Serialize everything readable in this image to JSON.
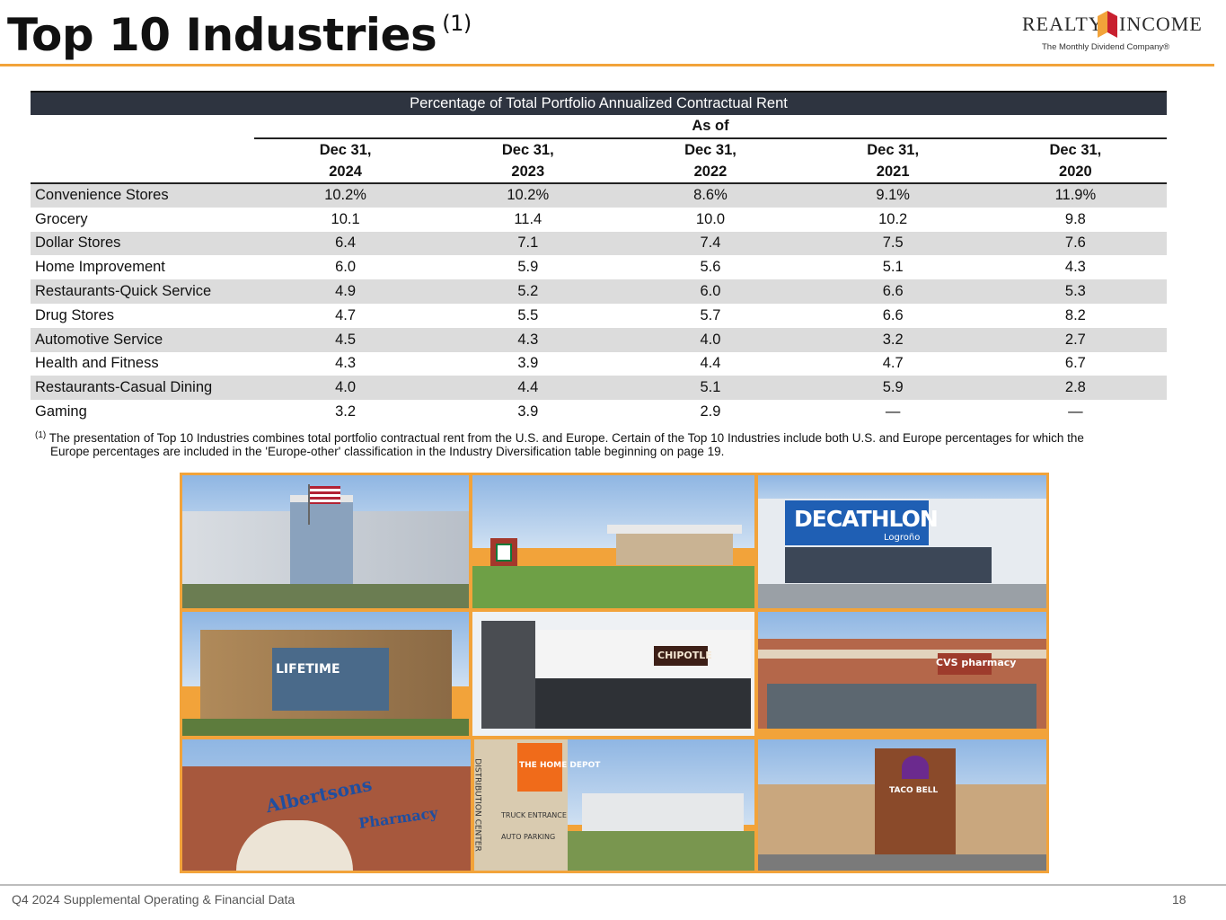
{
  "header": {
    "title": "Top 10 Industries",
    "title_superscript": "(1)",
    "logo_word_left": "REALTY",
    "logo_word_right": "INCOME",
    "logo_tagline": "The Monthly Dividend Company®"
  },
  "table": {
    "banner": "Percentage of Total Portfolio Annualized Contractual Rent",
    "as_of_label": "As of",
    "columns": [
      {
        "line1": "Dec 31,",
        "line2": "2024"
      },
      {
        "line1": "Dec 31,",
        "line2": "2023"
      },
      {
        "line1": "Dec 31,",
        "line2": "2022"
      },
      {
        "line1": "Dec 31,",
        "line2": "2021"
      },
      {
        "line1": "Dec 31,",
        "line2": "2020"
      }
    ],
    "rows": [
      {
        "name": "Convenience Stores",
        "values": [
          "10.2%",
          "10.2%",
          "8.6%",
          "9.1%",
          "11.9%"
        ]
      },
      {
        "name": "Grocery",
        "values": [
          "10.1",
          "11.4",
          "10.0",
          "10.2",
          "9.8"
        ]
      },
      {
        "name": "Dollar Stores",
        "values": [
          "6.4",
          "7.1",
          "7.4",
          "7.5",
          "7.6"
        ]
      },
      {
        "name": "Home Improvement",
        "values": [
          "6.0",
          "5.9",
          "5.6",
          "5.1",
          "4.3"
        ]
      },
      {
        "name": "Restaurants-Quick Service",
        "values": [
          "4.9",
          "5.2",
          "6.0",
          "6.6",
          "5.3"
        ]
      },
      {
        "name": "Drug Stores",
        "values": [
          "4.7",
          "5.5",
          "5.7",
          "6.6",
          "8.2"
        ]
      },
      {
        "name": "Automotive Service",
        "values": [
          "4.5",
          "4.3",
          "4.0",
          "3.2",
          "2.7"
        ]
      },
      {
        "name": "Health and Fitness",
        "values": [
          "4.3",
          "3.9",
          "4.4",
          "4.7",
          "6.7"
        ]
      },
      {
        "name": "Restaurants-Casual Dining",
        "values": [
          "4.0",
          "4.4",
          "5.1",
          "5.9",
          "2.8"
        ]
      },
      {
        "name": "Gaming",
        "values": [
          "3.2",
          "3.9",
          "2.9",
          "—",
          "—"
        ]
      }
    ]
  },
  "footnote": {
    "marker": "(1)",
    "line1": "The presentation of Top 10 Industries combines total portfolio contractual rent from the U.S. and Europe. Certain of the Top 10 Industries include both U.S. and Europe percentages for which the",
    "line2": "Europe percentages are included in the 'Europe-other' classification in the Industry Diversification table beginning on page 19."
  },
  "photos": {
    "decathlon_sign": "DECATHLON",
    "decathlon_sub": "Logroño",
    "lifetime_sign": "LIFETIME",
    "chipotle_sign": "CHIPOTLE",
    "cvs_sign": "CVS pharmacy",
    "albertsons_sign": "Albertsons",
    "albertsons_pharmacy": "Pharmacy",
    "homedepot_sign": "THE HOME DEPOT",
    "homedepot_dc": "DISTRIBUTION CENTER",
    "homedepot_truck": "TRUCK ENTRANCE",
    "homedepot_auto": "AUTO PARKING",
    "tacobell_sign": "TACO BELL"
  },
  "footer": {
    "left": "Q4 2024 Supplemental Operating & Financial Data",
    "page": "18"
  },
  "colors": {
    "accent_orange": "#f2a33a",
    "banner_dark": "#2e3440",
    "row_shade": "#dcdcdc"
  }
}
